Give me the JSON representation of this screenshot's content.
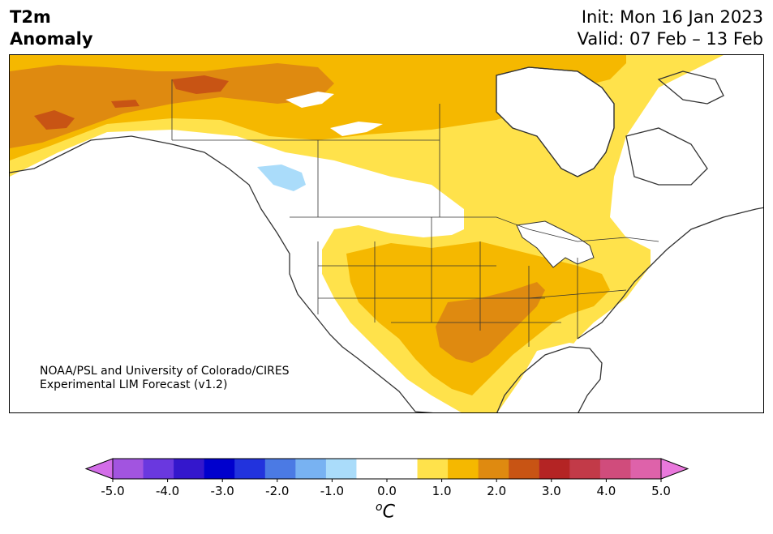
{
  "header": {
    "title_line1": "T2m",
    "title_line2": "Anomaly",
    "init": "Init: Mon 16 Jan 2023",
    "valid": "Valid: 07 Feb – 13 Feb"
  },
  "credit": {
    "line1": "NOAA/PSL and University of Colorado/CIRES",
    "line2": "Experimental LIM Forecast (v1.2)"
  },
  "colorbar": {
    "unit_sup": "o",
    "unit": "C",
    "ticks": [
      "-5.0",
      "-4.0",
      "-3.0",
      "-2.0",
      "-1.0",
      "0.0",
      "1.0",
      "2.0",
      "3.0",
      "4.0",
      "5.0"
    ],
    "colors": [
      "#d36de8",
      "#a254e0",
      "#6a38df",
      "#3417cc",
      "#0000cd",
      "#2233dd",
      "#4b7ae4",
      "#78b2f2",
      "#aadcfa",
      "#ffffff",
      "#ffffff",
      "#ffe24b",
      "#f5b800",
      "#df8a10",
      "#c85414",
      "#b42424",
      "#c23a48",
      "#d04c7c",
      "#de62aa",
      "#e978dc"
    ],
    "range": [
      -5.0,
      5.0
    ],
    "step": 0.5
  },
  "map": {
    "region": "North America",
    "colors": {
      "light_yellow": "#ffe24b",
      "yellow": "#f5b800",
      "orange": "#df8a10",
      "dark_orange": "#c85414",
      "light_blue": "#aadcfa",
      "land_line": "#333333"
    }
  }
}
